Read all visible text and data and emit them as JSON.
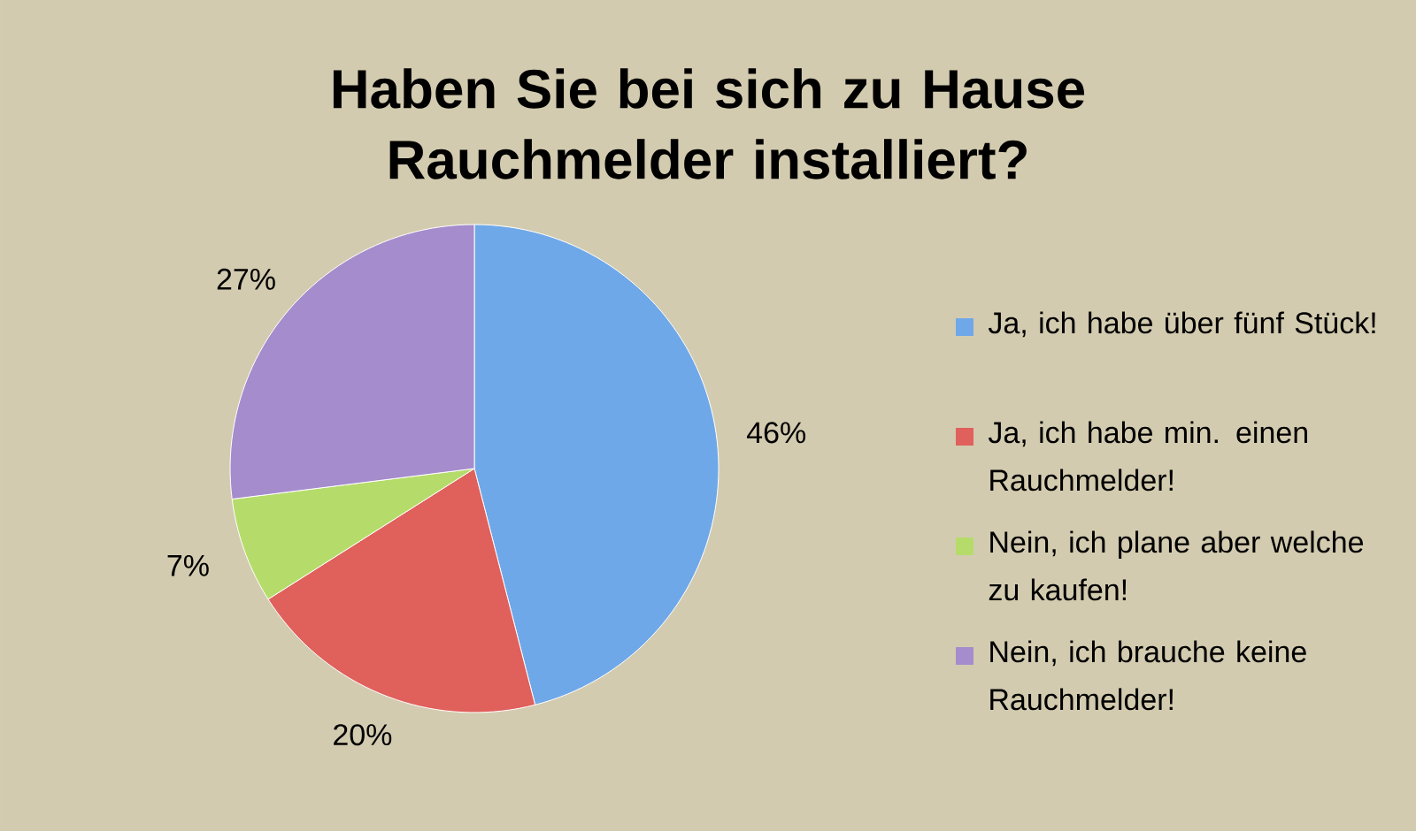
{
  "chart_data": {
    "type": "pie",
    "title": "Haben Sie bei sich zu Hause Rauchmelder installiert?",
    "categories": [
      "Ja, ich habe über fünf Stück!",
      "Ja, ich habe min. einen Rauchmelder!",
      "Nein, ich plane aber welche zu kaufen!",
      "Nein, ich brauche keine Rauchmelder!"
    ],
    "values": [
      46,
      20,
      7,
      27
    ],
    "value_labels": [
      "46%",
      "20%",
      "7%",
      "27%"
    ],
    "colors": [
      "#6fa8e8",
      "#e0605c",
      "#b5dc6a",
      "#a58ccc"
    ],
    "legend": "right"
  }
}
